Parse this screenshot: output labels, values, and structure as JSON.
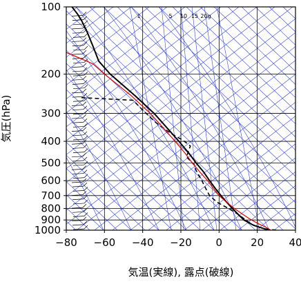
{
  "chart_data": {
    "type": "line",
    "title": "",
    "xlabel": "気温(実線), 露点(破線)",
    "ylabel": "気圧(hPa)",
    "xlim": [
      -80,
      40
    ],
    "ylim": [
      1000,
      100
    ],
    "y_scale": "log",
    "x_ticks": [
      "−80",
      "−60",
      "−40",
      "−20",
      "0",
      "20",
      "40"
    ],
    "y_ticks": [
      "100",
      "200",
      "300",
      "400",
      "500",
      "600",
      "700",
      "800",
      "900",
      "1000"
    ],
    "mixing_ratio_labels": [
      "1",
      "5",
      "10",
      "15",
      "20g"
    ],
    "series": [
      {
        "style": "solid",
        "color": "#000000",
        "points": [
          [
            26,
            1000
          ],
          [
            22,
            975
          ],
          [
            18,
            950
          ],
          [
            13,
            900
          ],
          [
            10,
            850
          ],
          [
            7,
            800
          ],
          [
            4,
            750
          ],
          [
            1,
            700
          ],
          [
            -2,
            650
          ],
          [
            -5,
            600
          ],
          [
            -8,
            550
          ],
          [
            -12,
            500
          ],
          [
            -16,
            450
          ],
          [
            -21,
            400
          ],
          [
            -27,
            350
          ],
          [
            -34,
            300
          ],
          [
            -44,
            250
          ],
          [
            -57,
            200
          ],
          [
            -63,
            175
          ],
          [
            -66,
            150
          ],
          [
            -69,
            130
          ],
          [
            -72,
            115
          ],
          [
            -74,
            108
          ],
          [
            -77,
            100
          ]
        ]
      },
      {
        "style": "dashed",
        "color": "#000000",
        "points": [
          [
            30,
            1000
          ],
          [
            24,
            985
          ],
          [
            20,
            965
          ],
          [
            17,
            940
          ],
          [
            14,
            900
          ],
          [
            10,
            850
          ],
          [
            5,
            800
          ],
          [
            -1,
            750
          ],
          [
            -5,
            700
          ],
          [
            -7,
            650
          ],
          [
            -9,
            600
          ],
          [
            -11,
            560
          ],
          [
            -12,
            540
          ],
          [
            -13,
            510
          ],
          [
            -17,
            470
          ],
          [
            -16,
            440
          ],
          [
            -15,
            420
          ],
          [
            -19,
            395
          ],
          [
            -25,
            370
          ],
          [
            -33,
            330
          ],
          [
            -40,
            290
          ],
          [
            -45,
            262
          ],
          [
            -72,
            255
          ]
        ]
      },
      {
        "style": "solid",
        "color": "#dd0000",
        "points": [
          [
            27,
            1000
          ],
          [
            25,
            975
          ],
          [
            20,
            930
          ],
          [
            16,
            890
          ],
          [
            12,
            845
          ],
          [
            8,
            800
          ],
          [
            4,
            750
          ],
          [
            0,
            700
          ],
          [
            -3,
            650
          ],
          [
            -6,
            600
          ],
          [
            -10,
            550
          ],
          [
            -14,
            500
          ],
          [
            -18,
            450
          ],
          [
            -23,
            400
          ],
          [
            -29,
            350
          ],
          [
            -36,
            300
          ],
          [
            -46,
            250
          ],
          [
            -60,
            200
          ],
          [
            -66,
            180
          ],
          [
            -80,
            160
          ]
        ]
      }
    ],
    "wind_barb_column": "−74 ~ −68 (right side, x-axis units)",
    "colors": {
      "grid": "#000000",
      "background_lines": "#3344dd",
      "temperature": "#000000",
      "dewpoint": "#000000",
      "parcel": "#dd0000"
    }
  }
}
